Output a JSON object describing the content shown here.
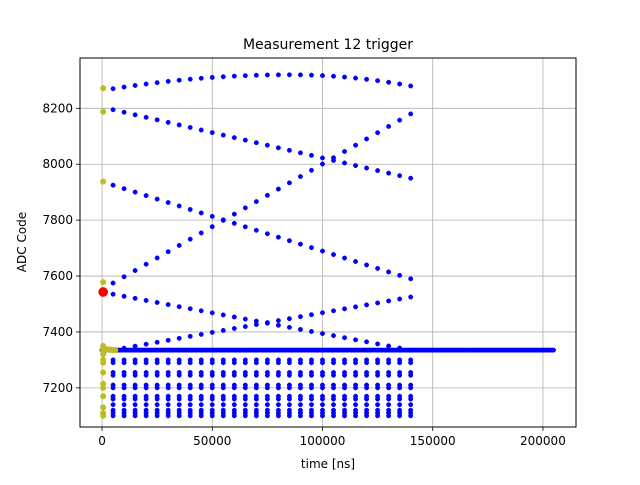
{
  "chart_data": {
    "type": "scatter",
    "title": "Measurement 12 trigger",
    "xlabel": "time [ns]",
    "ylabel": "ADC Code",
    "xlim": [
      -10000,
      215000
    ],
    "ylim": [
      7060,
      8380
    ],
    "grid": true,
    "xticks": [
      0,
      50000,
      100000,
      150000,
      200000
    ],
    "yticks": [
      7200,
      7400,
      7600,
      7800,
      8000,
      8200
    ],
    "colors": {
      "main": "#0000ff",
      "early": "#bcbd22",
      "trigger": "#ff0000",
      "marker_edge": "#000000"
    },
    "series": [
      {
        "role": "main",
        "color": "#0000ff",
        "curves": [
          {
            "x_start": 5000,
            "x_end": 140000,
            "step": 5000,
            "shape": "parabola",
            "y_start": 8270,
            "y_mid": 8320,
            "y_end": 8280,
            "x_peak": 85000
          },
          {
            "x_start": 5000,
            "x_end": 140000,
            "step": 5000,
            "shape": "line",
            "y_start": 8195,
            "y_end": 7950
          },
          {
            "x_start": 5000,
            "x_end": 140000,
            "step": 5000,
            "shape": "line",
            "y_start": 7925,
            "y_end": 7590
          },
          {
            "x_start": 5000,
            "x_end": 140000,
            "step": 5000,
            "shape": "line",
            "y_start": 7575,
            "y_end": 8180
          },
          {
            "x_start": 5000,
            "x_end": 140000,
            "step": 5000,
            "shape": "line",
            "y_start": 7535,
            "y_end": 7335
          },
          {
            "x_start": 5000,
            "x_end": 140000,
            "step": 5000,
            "shape": "line",
            "y_start": 7335,
            "y_end": 7525
          }
        ],
        "bands": [
          {
            "x_start": 5000,
            "x_end": 140000,
            "step": 5000,
            "levels": [
              7300,
              7290,
              7255,
              7245,
              7210,
              7200,
              7170,
              7160,
              7140,
              7120,
              7110,
              7100
            ]
          }
        ],
        "baseline": {
          "x_start": 0,
          "x_end": 205000,
          "step": 800,
          "y": 7335
        }
      },
      {
        "role": "early",
        "color": "#bcbd22",
        "points": [
          [
            500,
            8272
          ],
          [
            500,
            8188
          ],
          [
            500,
            7938
          ],
          [
            500,
            7578
          ],
          [
            500,
            7350
          ],
          [
            500,
            7335
          ],
          [
            500,
            7320
          ],
          [
            500,
            7300
          ],
          [
            500,
            7290
          ],
          [
            500,
            7255
          ],
          [
            500,
            7215
          ],
          [
            500,
            7200
          ],
          [
            500,
            7170
          ],
          [
            500,
            7130
          ],
          [
            500,
            7110
          ],
          [
            500,
            7100
          ],
          [
            1000,
            7340
          ],
          [
            2000,
            7338
          ],
          [
            3000,
            7337
          ],
          [
            4000,
            7336
          ],
          [
            5000,
            7335
          ],
          [
            6000,
            7335
          ]
        ]
      },
      {
        "role": "trigger",
        "color": "#ff0000",
        "points": [
          [
            500,
            7543
          ]
        ]
      }
    ]
  }
}
